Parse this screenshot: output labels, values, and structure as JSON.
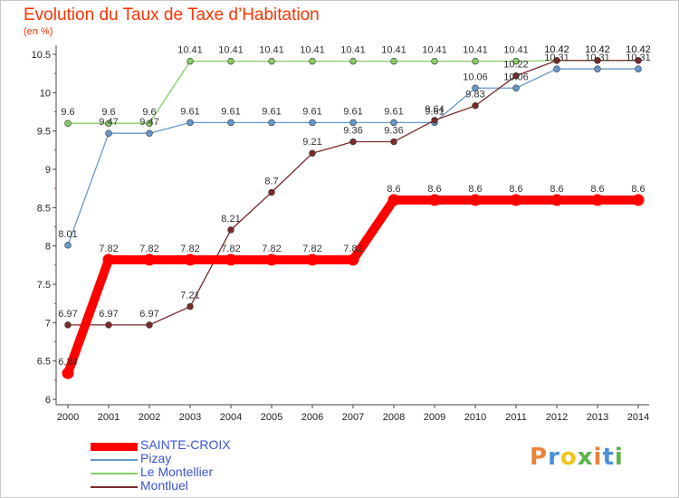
{
  "header": {
    "title": "Evolution du Taux de Taxe d’Habitation",
    "subtitle": "(en %)"
  },
  "logo": {
    "text": "Proxiti",
    "colors": [
      "#e8833a",
      "#4a90d9",
      "#f0c419",
      "#5bb34a",
      "#e8833a",
      "#4a90d9",
      "#5bb34a"
    ]
  },
  "chart_data": {
    "type": "line",
    "title": "Evolution du Taux de Taxe d’Habitation",
    "ylabel": "(en %)",
    "xlabel": "",
    "x": [
      2000,
      2001,
      2002,
      2003,
      2004,
      2005,
      2006,
      2007,
      2008,
      2009,
      2010,
      2011,
      2012,
      2013,
      2014
    ],
    "ylim": [
      6,
      10.5
    ],
    "yticks": [
      6,
      6.5,
      7,
      7.5,
      8,
      8.5,
      9,
      9.5,
      10,
      10.5
    ],
    "grid": false,
    "legend": "bottom-left",
    "series": [
      {
        "name": "SAINTE-CROIX",
        "color": "#ff0000",
        "values": [
          6.34,
          7.82,
          7.82,
          7.82,
          7.82,
          7.82,
          7.82,
          7.82,
          8.6,
          8.6,
          8.6,
          8.6,
          8.6,
          8.6,
          8.6
        ]
      },
      {
        "name": "Pizay",
        "color": "#6699cc",
        "values": [
          8.01,
          9.47,
          9.47,
          9.61,
          9.61,
          9.61,
          9.61,
          9.61,
          9.61,
          9.61,
          10.06,
          10.06,
          10.31,
          10.31,
          10.31
        ]
      },
      {
        "name": "Le Montellier",
        "color": "#88cc66",
        "values": [
          9.6,
          9.6,
          9.6,
          10.41,
          10.41,
          10.41,
          10.41,
          10.41,
          10.41,
          10.41,
          10.41,
          10.41,
          10.42,
          10.42,
          10.42
        ]
      },
      {
        "name": "Montluel",
        "color": "#7a2a2a",
        "values": [
          6.97,
          6.97,
          6.97,
          7.21,
          8.21,
          8.7,
          9.21,
          9.36,
          9.36,
          9.64,
          9.83,
          10.22,
          10.42,
          10.42,
          10.42
        ]
      }
    ]
  }
}
